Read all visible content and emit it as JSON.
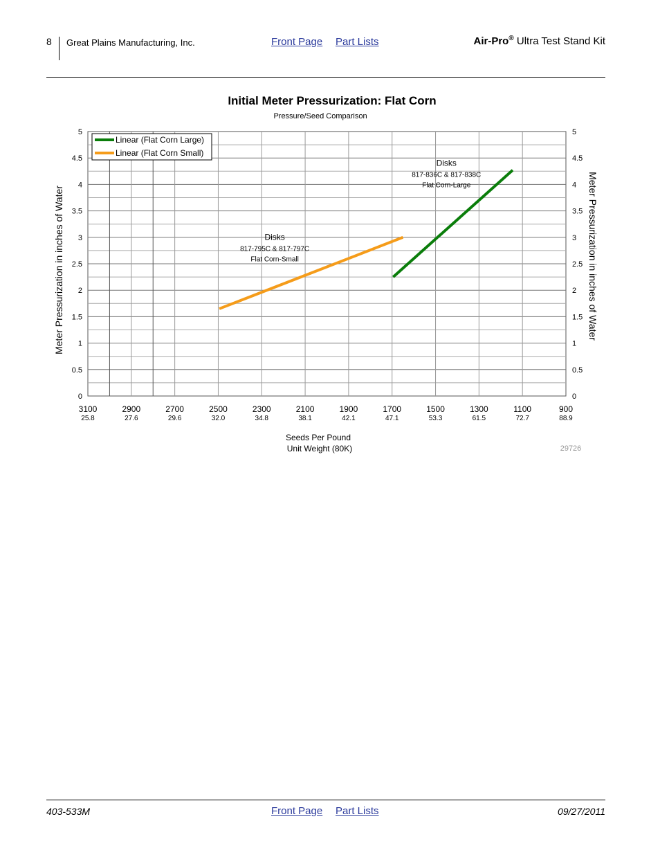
{
  "header": {
    "page_number": "8",
    "company": "Great Plains Manufacturing, Inc.",
    "front_page_link": "Front Page",
    "part_lists_link": "Part Lists",
    "product_brand": "Air-Pro",
    "product_reg": "®",
    "product_rest": " Ultra Test Stand Kit"
  },
  "footer": {
    "doc_number": "403-533M",
    "front_page_link": "Front Page",
    "part_lists_link": "Part Lists",
    "date": "09/27/2011"
  },
  "colors": {
    "large": "#0a7d0a",
    "small": "#f59c1a",
    "link": "#2b3a9c"
  },
  "chart_data": {
    "type": "line",
    "title": "Initial Meter Pressurization: Flat Corn",
    "subtitle": "Pressure/Seed Comparison",
    "xlabel": "Seeds Per Pound",
    "xlabel2": "Unit Weight (80K)",
    "ylabel_left": "Meter Pressurization in inches of Water",
    "ylabel_right": "Meter Pressurization in inches of Water",
    "x_ticks": [
      "3100",
      "2900",
      "2700",
      "2500",
      "2300",
      "2100",
      "1900",
      "1700",
      "1500",
      "1300",
      "1100",
      "900"
    ],
    "x_ticks_secondary": [
      "25.8",
      "27.6",
      "29.6",
      "32.0",
      "34.8",
      "38.1",
      "42.1",
      "47.1",
      "53.3",
      "61.5",
      "72.7",
      "88.9"
    ],
    "x_range": [
      3100,
      900
    ],
    "y_ticks": [
      "0",
      "0.5",
      "1",
      "1.5",
      "2",
      "2.5",
      "3",
      "3.5",
      "4",
      "4.5",
      "5"
    ],
    "ylim": [
      0,
      5
    ],
    "grid": true,
    "legend_position": "top-left",
    "series": [
      {
        "name": "Linear (Flat Corn Large)",
        "color": "#0a7d0a",
        "x": [
          1695,
          1145
        ],
        "y": [
          2.25,
          4.27
        ]
      },
      {
        "name": "Linear (Flat Corn Small)",
        "color": "#f59c1a",
        "x": [
          2495,
          1650
        ],
        "y": [
          1.65,
          3.0
        ]
      }
    ],
    "annotations": [
      {
        "title": "Disks",
        "line1": "817-836C & 817-838C",
        "line2": "Flat Corn-Large",
        "x": 1450,
        "y": 4.35
      },
      {
        "title": "Disks",
        "line1": "817-795C & 817-797C",
        "line2": "Flat Corn-Small",
        "x": 2240,
        "y": 2.95
      }
    ],
    "figure_id": "29726"
  }
}
